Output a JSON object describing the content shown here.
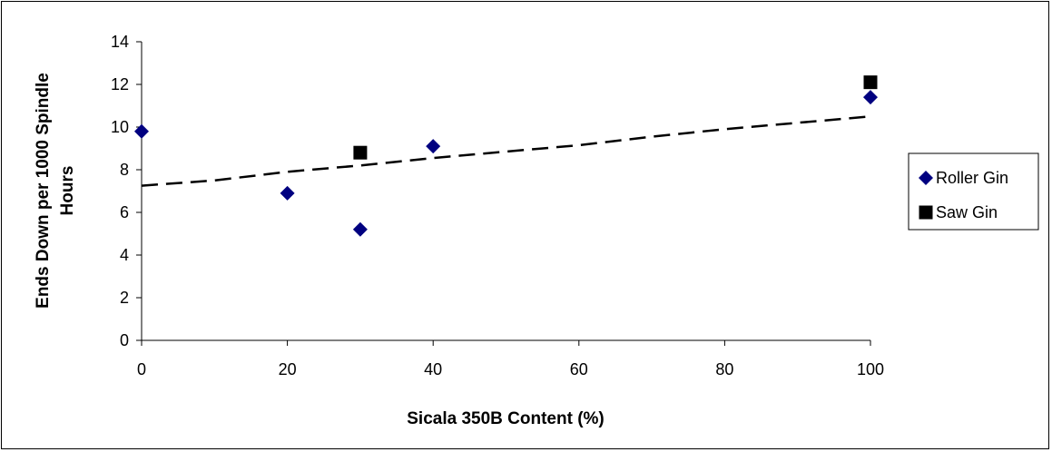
{
  "chart_data": {
    "type": "scatter",
    "title": "",
    "xlabel": "Sicala 350B Content (%)",
    "ylabel": "Ends Down per 1000 Spindle Hours",
    "xlim": [
      0,
      100
    ],
    "ylim": [
      0,
      14
    ],
    "xticks": [
      0,
      20,
      40,
      60,
      80,
      100
    ],
    "yticks": [
      0,
      2,
      4,
      6,
      8,
      10,
      12,
      14
    ],
    "grid": false,
    "legend_position": "right",
    "series": [
      {
        "name": "Roller Gin",
        "marker": "diamond",
        "color": "#000080",
        "points": [
          [
            0,
            9.8
          ],
          [
            20,
            6.9
          ],
          [
            30,
            5.2
          ],
          [
            40,
            9.1
          ],
          [
            100,
            11.4
          ]
        ]
      },
      {
        "name": "Saw Gin",
        "marker": "square",
        "color": "#000000",
        "points": [
          [
            30,
            8.8
          ],
          [
            100,
            12.1
          ]
        ]
      }
    ],
    "trendline": {
      "style": "dashed",
      "color": "#000000",
      "points": [
        [
          0,
          7.25
        ],
        [
          10,
          7.5
        ],
        [
          20,
          7.9
        ],
        [
          30,
          8.2
        ],
        [
          40,
          8.55
        ],
        [
          50,
          8.85
        ],
        [
          60,
          9.15
        ],
        [
          70,
          9.55
        ],
        [
          80,
          9.9
        ],
        [
          90,
          10.2
        ],
        [
          100,
          10.5
        ]
      ]
    }
  }
}
